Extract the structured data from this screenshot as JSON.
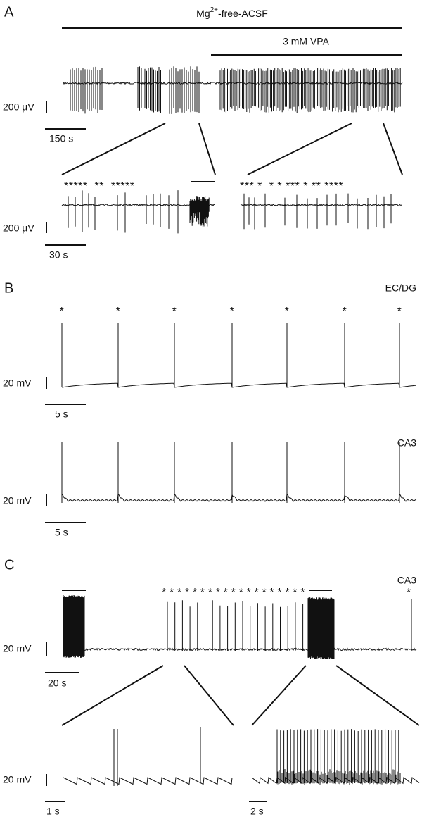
{
  "panel_a": {
    "label": "A",
    "condition": {
      "base": "Mg",
      "superscript": "2+",
      "rest": "-free-ACSF"
    },
    "drug": "3 mM VPA",
    "scale_voltage": "200 µV",
    "scale_time": "150 s",
    "zoom_scale_voltage": "200 µV",
    "zoom_scale_time": "30 s",
    "zoom_left_markers": "*****  **  *****",
    "zoom_right_markers": "*** *  * * *** * ** ****"
  },
  "panel_b": {
    "label": "B",
    "trace_1_region": "EC/DG",
    "trace_1_markers": [
      "*",
      "*",
      "*",
      "*",
      "*",
      "*",
      "*"
    ],
    "trace_1_scale_voltage": "20 mV",
    "trace_1_scale_time": "5 s",
    "trace_2_region": "CA3",
    "trace_2_scale_voltage": "20 mV",
    "trace_2_scale_time": "5 s"
  },
  "panel_c": {
    "label": "C",
    "region": "CA3",
    "markers": "*******************",
    "end_marker": "*",
    "scale_voltage": "20 mV",
    "scale_time": "20 s",
    "zoom_scale_voltage": "20 mV",
    "zoom_left_scale_time": "1 s",
    "zoom_right_scale_time": "2 s"
  }
}
